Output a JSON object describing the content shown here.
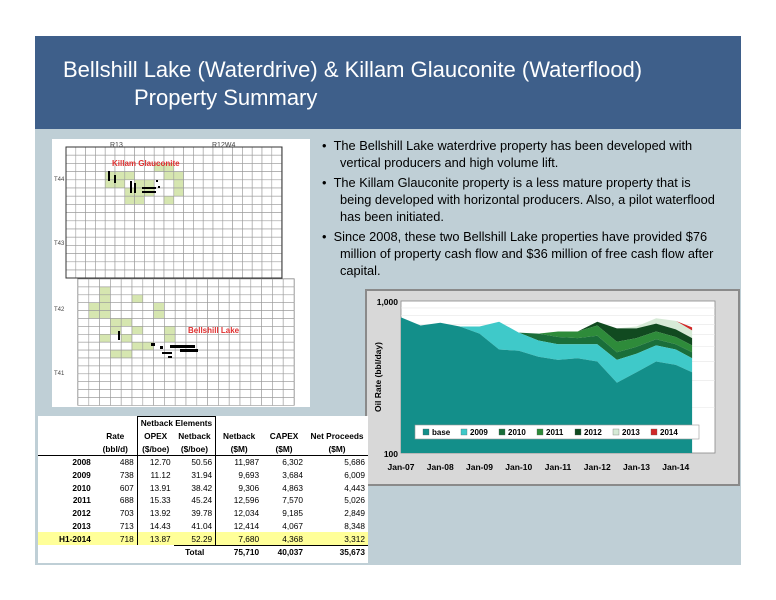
{
  "slide": {
    "title_line1": "Bellshill Lake (Waterdrive) & Killam Glauconite (Waterflood)",
    "title_line2": "Property Summary"
  },
  "map": {
    "top_labels": [
      "R13",
      "R12W4"
    ],
    "side_labels": [
      "T44",
      "T43",
      "T42",
      "T41"
    ],
    "label_killam": "Killam Glauconite",
    "label_bellshill": "Bellshill Lake",
    "label_color": "#e03030",
    "cell_fill": "#d6e6b0"
  },
  "bullets": [
    "The Bellshill Lake waterdrive property has been developed with vertical producers and high volume lift.",
    "The Killam Glauconite property is a less mature property that is being developed with horizontal producers. Also, a pilot waterflood has been initiated.",
    "Since 2008, these two Bellshill Lake properties have provided $76 million of property cash flow and $36 million of free cash flow after capital."
  ],
  "chart_data": {
    "type": "area",
    "ylabel": "Oil Rate (bbl/day)",
    "yscale": "log",
    "ylim": [
      100,
      1000
    ],
    "ytick_labels": [
      "1,000",
      "100"
    ],
    "xtick_labels": [
      "Jan-07",
      "Jan-08",
      "Jan-09",
      "Jan-10",
      "Jan-11",
      "Jan-12",
      "Jan-13",
      "Jan-14"
    ],
    "legend_position": "bottom-inside",
    "x": [
      "2007-01",
      "2007-07",
      "2008-01",
      "2008-07",
      "2009-01",
      "2009-07",
      "2010-01",
      "2010-07",
      "2011-01",
      "2011-07",
      "2012-01",
      "2012-07",
      "2013-01",
      "2013-07",
      "2014-01",
      "2014-06"
    ],
    "series": [
      {
        "name": "base",
        "color": "#138f8a",
        "values": [
          780,
          690,
          720,
          680,
          610,
          480,
          470,
          430,
          410,
          420,
          400,
          290,
          340,
          400,
          380,
          340
        ]
      },
      {
        "name": "2009",
        "color": "#3fc9c9",
        "values": [
          0,
          0,
          0,
          0,
          70,
          250,
          150,
          120,
          110,
          100,
          120,
          120,
          110,
          110,
          100,
          80
        ]
      },
      {
        "name": "2010",
        "color": "#1a6e3a",
        "values": [
          0,
          0,
          0,
          0,
          0,
          0,
          0,
          60,
          60,
          50,
          70,
          50,
          50,
          50,
          40,
          40
        ]
      },
      {
        "name": "2011",
        "color": "#2e8b3a",
        "values": [
          0,
          0,
          0,
          0,
          0,
          0,
          0,
          0,
          50,
          60,
          100,
          80,
          70,
          70,
          60,
          50
        ]
      },
      {
        "name": "2012",
        "color": "#114a20",
        "values": [
          0,
          0,
          0,
          0,
          0,
          0,
          0,
          0,
          0,
          0,
          40,
          120,
          90,
          80,
          70,
          60
        ]
      },
      {
        "name": "2013",
        "color": "#d6ead6",
        "values": [
          0,
          0,
          0,
          0,
          0,
          0,
          0,
          0,
          0,
          0,
          0,
          0,
          20,
          60,
          90,
          70
        ]
      },
      {
        "name": "2014",
        "color": "#d02828",
        "values": [
          0,
          0,
          0,
          0,
          0,
          0,
          0,
          0,
          0,
          0,
          0,
          0,
          0,
          0,
          0,
          30
        ]
      }
    ]
  },
  "table": {
    "group_header": "Netback Elements",
    "columns": [
      {
        "h1": "Rate",
        "h2": "(bbl/d)"
      },
      {
        "h1": "OPEX",
        "h2": "($/boe)"
      },
      {
        "h1": "Netback",
        "h2": "($/boe)"
      },
      {
        "h1": "Netback",
        "h2": "($M)"
      },
      {
        "h1": "CAPEX",
        "h2": "($M)"
      },
      {
        "h1": "Net Proceeds",
        "h2": "($M)"
      }
    ],
    "rows": [
      {
        "label": "2008",
        "values": [
          "488",
          "12.70",
          "50.56",
          "11,987",
          "6,302",
          "5,686"
        ]
      },
      {
        "label": "2009",
        "values": [
          "738",
          "11.12",
          "31.94",
          "9,693",
          "3,684",
          "6,009"
        ]
      },
      {
        "label": "2010",
        "values": [
          "607",
          "13.91",
          "38.42",
          "9,306",
          "4,863",
          "4,443"
        ]
      },
      {
        "label": "2011",
        "values": [
          "688",
          "15.33",
          "45.24",
          "12,596",
          "7,570",
          "5,026"
        ]
      },
      {
        "label": "2012",
        "values": [
          "703",
          "13.92",
          "39.78",
          "12,034",
          "9,185",
          "2,849"
        ]
      },
      {
        "label": "2013",
        "values": [
          "713",
          "14.43",
          "41.04",
          "12,414",
          "4,067",
          "8,348"
        ]
      },
      {
        "label": "H1-2014",
        "values": [
          "718",
          "13.87",
          "52.29",
          "7,680",
          "4,368",
          "3,312"
        ]
      }
    ],
    "total_label": "Total",
    "totals": [
      "75,710",
      "40,037",
      "35,673"
    ],
    "highlight_color": "#ffff99"
  }
}
